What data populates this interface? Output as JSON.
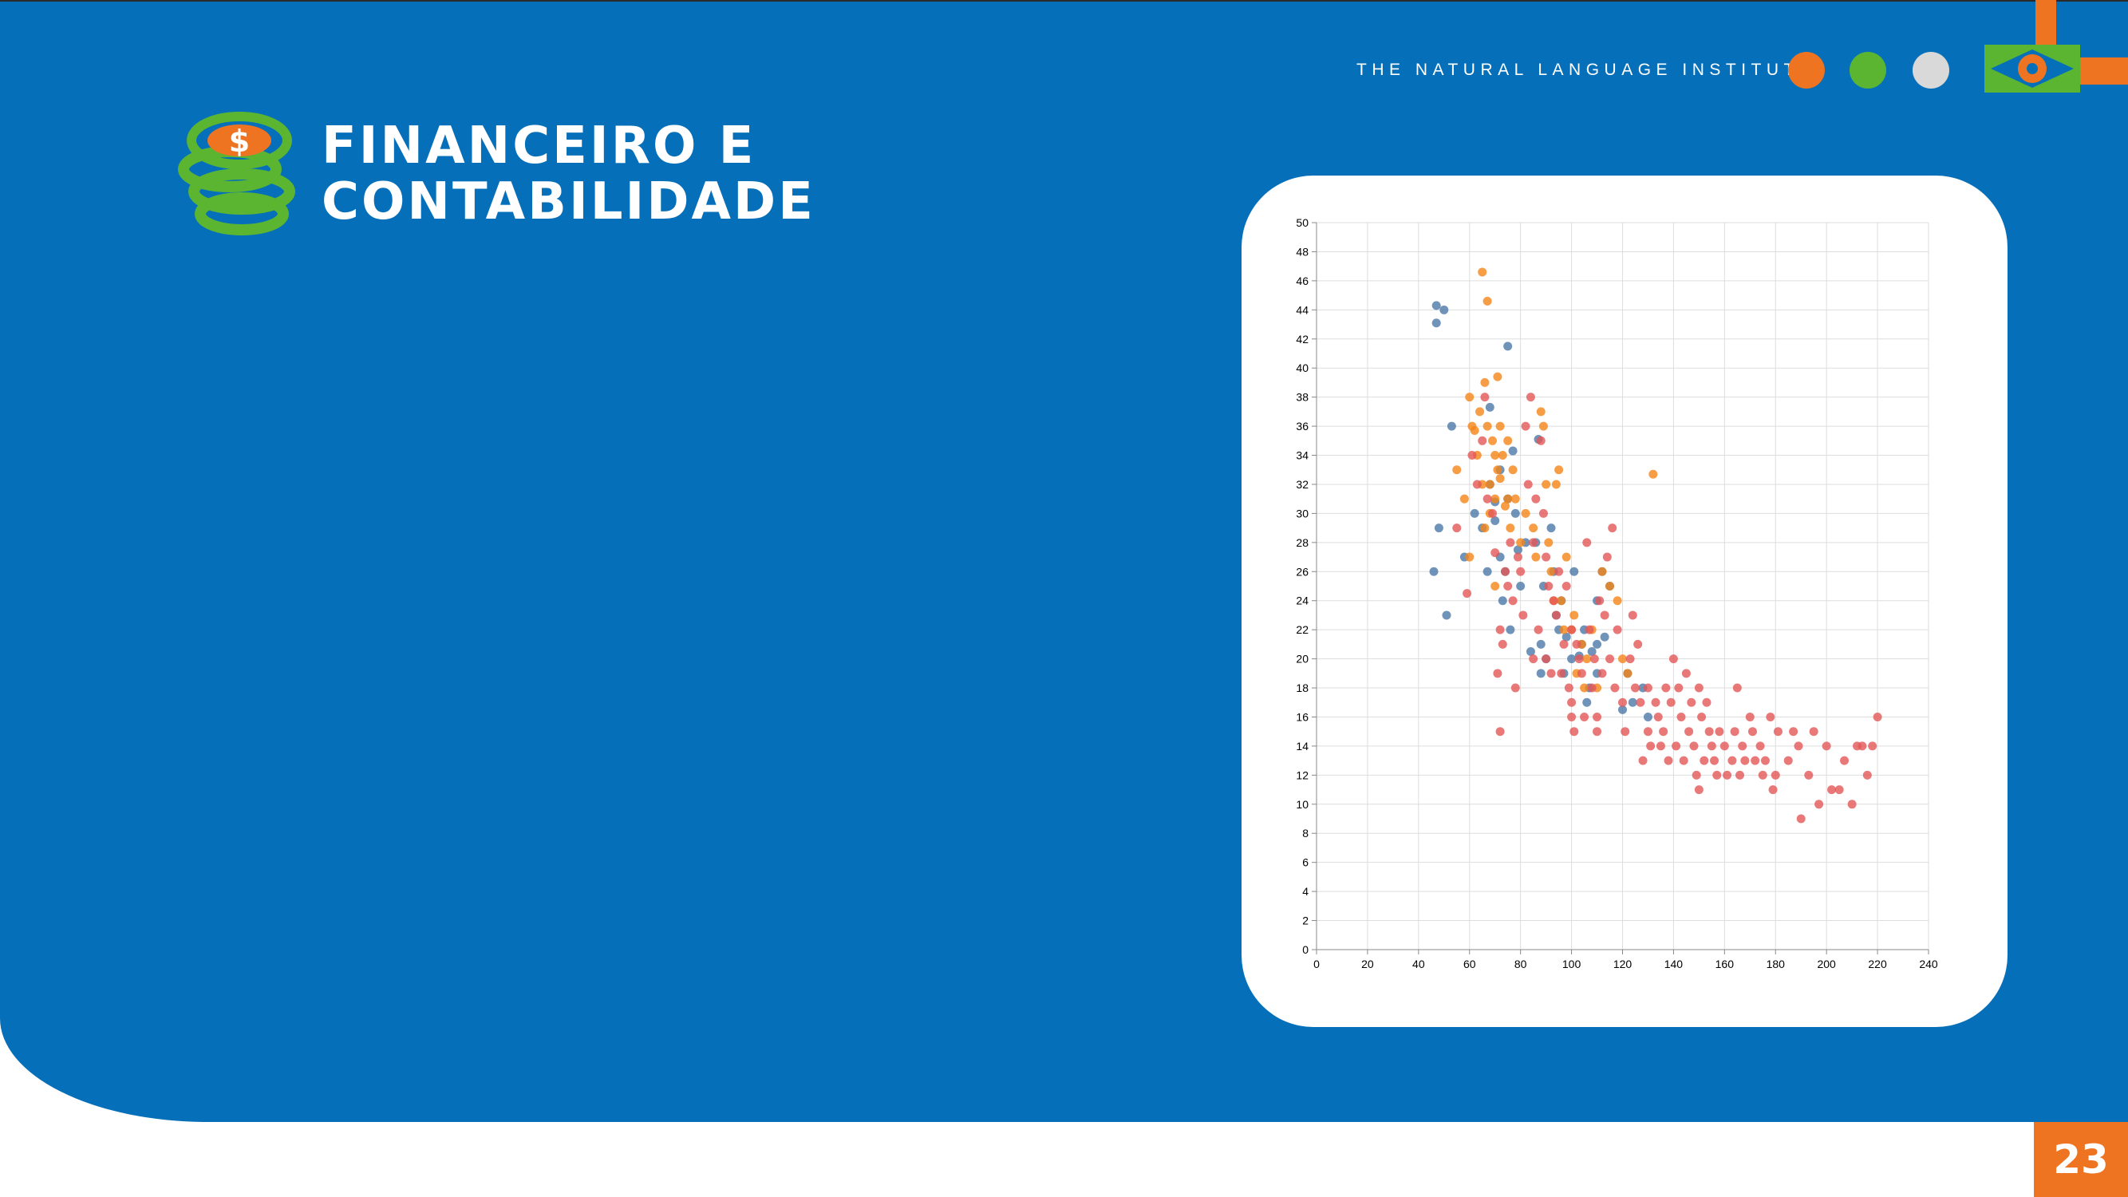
{
  "header": {
    "institute": "THE NATURAL LANGUAGE INSTITUTE",
    "dots": [
      {
        "name": "orange-dot",
        "color": "#ef7422"
      },
      {
        "name": "green-dot",
        "color": "#5cb531"
      },
      {
        "name": "gray-dot",
        "color": "#d9d9d9"
      }
    ],
    "logo_icon": "eye-flag-icon"
  },
  "slide": {
    "title_line1": "FINANCEIRO E",
    "title_line2": "CONTABILIDADE",
    "title_icon": "coin-stack-dollar-icon",
    "page_number": "23"
  },
  "colors": {
    "background": "#0570b9",
    "accent_orange": "#ef7422",
    "accent_green": "#5cb531"
  },
  "chart_data": {
    "type": "scatter",
    "xlim": [
      0,
      240
    ],
    "ylim": [
      0,
      50
    ],
    "x_ticks": [
      "0",
      "20",
      "40",
      "60",
      "80",
      "100",
      "120",
      "140",
      "160",
      "180",
      "200",
      "220",
      "240"
    ],
    "y_ticks": [
      "0",
      "2",
      "4",
      "6",
      "8",
      "10",
      "12",
      "14",
      "16",
      "18",
      "20",
      "22",
      "24",
      "26",
      "28",
      "30",
      "32",
      "34",
      "36",
      "38",
      "40",
      "42",
      "44",
      "46",
      "48",
      "50"
    ],
    "grid": true,
    "series": [
      {
        "color": "#4c78a8",
        "points": [
          [
            46,
            26
          ],
          [
            47,
            44.3
          ],
          [
            47,
            43.1
          ],
          [
            50,
            44
          ],
          [
            48,
            29
          ],
          [
            51,
            23
          ],
          [
            53,
            36
          ],
          [
            58,
            27
          ],
          [
            62,
            30
          ],
          [
            65,
            29
          ],
          [
            67,
            26
          ],
          [
            68,
            37.3
          ],
          [
            68,
            32
          ],
          [
            70,
            29.5
          ],
          [
            70,
            30.8
          ],
          [
            72,
            33
          ],
          [
            72,
            27
          ],
          [
            73,
            24
          ],
          [
            74,
            26
          ],
          [
            75,
            41.5
          ],
          [
            75,
            31
          ],
          [
            76,
            22
          ],
          [
            77,
            34.3
          ],
          [
            78,
            30
          ],
          [
            79,
            27.5
          ],
          [
            80,
            25
          ],
          [
            82,
            28
          ],
          [
            84,
            20.5
          ],
          [
            86,
            28
          ],
          [
            87,
            35.1
          ],
          [
            88,
            21
          ],
          [
            88,
            19
          ],
          [
            89,
            25
          ],
          [
            90,
            20
          ],
          [
            92,
            29
          ],
          [
            93,
            26
          ],
          [
            94,
            23
          ],
          [
            95,
            22
          ],
          [
            96,
            24
          ],
          [
            97,
            19
          ],
          [
            98,
            21.5
          ],
          [
            100,
            20
          ],
          [
            101,
            26
          ],
          [
            103,
            20.2
          ],
          [
            104,
            21
          ],
          [
            105,
            22
          ],
          [
            106,
            17
          ],
          [
            107,
            18
          ],
          [
            108,
            20.5
          ],
          [
            110,
            21
          ],
          [
            110,
            24
          ],
          [
            112,
            26
          ],
          [
            113,
            21.5
          ],
          [
            115,
            25
          ],
          [
            120,
            16.5
          ],
          [
            122,
            19
          ],
          [
            124,
            17
          ],
          [
            128,
            18
          ],
          [
            130,
            16
          ],
          [
            110,
            19
          ]
        ]
      },
      {
        "color": "#f58518",
        "points": [
          [
            55,
            33
          ],
          [
            58,
            31
          ],
          [
            60,
            38
          ],
          [
            61,
            36
          ],
          [
            62,
            35.7
          ],
          [
            63,
            34
          ],
          [
            64,
            37
          ],
          [
            65,
            46.6
          ],
          [
            65,
            32
          ],
          [
            66,
            29
          ],
          [
            66,
            39
          ],
          [
            67,
            44.6
          ],
          [
            67,
            36
          ],
          [
            68,
            32
          ],
          [
            68,
            30
          ],
          [
            69,
            35
          ],
          [
            70,
            31
          ],
          [
            70,
            34
          ],
          [
            71,
            33
          ],
          [
            71,
            39.4
          ],
          [
            72,
            36
          ],
          [
            72,
            32.4
          ],
          [
            73,
            34
          ],
          [
            74,
            30.5
          ],
          [
            75,
            35
          ],
          [
            75,
            31
          ],
          [
            76,
            29
          ],
          [
            77,
            33
          ],
          [
            78,
            31
          ],
          [
            80,
            28
          ],
          [
            82,
            30
          ],
          [
            85,
            29
          ],
          [
            86,
            27
          ],
          [
            88,
            37
          ],
          [
            89,
            36
          ],
          [
            90,
            32
          ],
          [
            91,
            28
          ],
          [
            92,
            26
          ],
          [
            93,
            24
          ],
          [
            94,
            32
          ],
          [
            95,
            33
          ],
          [
            96,
            24
          ],
          [
            97,
            22
          ],
          [
            98,
            27
          ],
          [
            100,
            22
          ],
          [
            101,
            23
          ],
          [
            102,
            19
          ],
          [
            104,
            21
          ],
          [
            105,
            18
          ],
          [
            106,
            20
          ],
          [
            108,
            22
          ],
          [
            110,
            18
          ],
          [
            112,
            26
          ],
          [
            115,
            25
          ],
          [
            118,
            24
          ],
          [
            120,
            20
          ],
          [
            122,
            19
          ],
          [
            132,
            32.7
          ],
          [
            60,
            27
          ],
          [
            70,
            25
          ]
        ]
      },
      {
        "color": "#e45756",
        "points": [
          [
            55,
            29
          ],
          [
            59,
            24.5
          ],
          [
            61,
            34
          ],
          [
            63,
            32
          ],
          [
            65,
            35
          ],
          [
            66,
            38
          ],
          [
            67,
            31
          ],
          [
            69,
            30
          ],
          [
            70,
            27.3
          ],
          [
            71,
            19
          ],
          [
            72,
            22
          ],
          [
            72,
            15
          ],
          [
            73,
            21
          ],
          [
            74,
            26
          ],
          [
            75,
            25
          ],
          [
            76,
            28
          ],
          [
            77,
            24
          ],
          [
            78,
            18
          ],
          [
            79,
            27
          ],
          [
            80,
            26
          ],
          [
            81,
            23
          ],
          [
            82,
            36
          ],
          [
            83,
            32
          ],
          [
            84,
            38
          ],
          [
            85,
            28
          ],
          [
            85,
            20
          ],
          [
            86,
            31
          ],
          [
            87,
            22
          ],
          [
            88,
            35
          ],
          [
            89,
            30
          ],
          [
            90,
            27
          ],
          [
            90,
            20
          ],
          [
            91,
            25
          ],
          [
            92,
            19
          ],
          [
            93,
            24
          ],
          [
            94,
            23
          ],
          [
            95,
            26
          ],
          [
            96,
            19
          ],
          [
            97,
            21
          ],
          [
            98,
            25
          ],
          [
            99,
            18
          ],
          [
            100,
            22
          ],
          [
            100,
            17
          ],
          [
            100,
            16
          ],
          [
            101,
            15
          ],
          [
            102,
            21
          ],
          [
            103,
            20
          ],
          [
            104,
            19
          ],
          [
            105,
            16
          ],
          [
            106,
            28
          ],
          [
            107,
            22
          ],
          [
            108,
            18
          ],
          [
            109,
            20
          ],
          [
            110,
            16
          ],
          [
            110,
            15
          ],
          [
            111,
            24
          ],
          [
            112,
            19
          ],
          [
            113,
            23
          ],
          [
            114,
            27
          ],
          [
            115,
            20
          ],
          [
            116,
            29
          ],
          [
            117,
            18
          ],
          [
            118,
            22
          ],
          [
            120,
            17
          ],
          [
            121,
            15
          ],
          [
            123,
            20
          ],
          [
            124,
            23
          ],
          [
            125,
            18
          ],
          [
            126,
            21
          ],
          [
            127,
            17
          ],
          [
            128,
            13
          ],
          [
            130,
            15
          ],
          [
            130,
            18
          ],
          [
            131,
            14
          ],
          [
            133,
            17
          ],
          [
            134,
            16
          ],
          [
            135,
            14
          ],
          [
            136,
            15
          ],
          [
            137,
            18
          ],
          [
            138,
            13
          ],
          [
            139,
            17
          ],
          [
            140,
            20
          ],
          [
            141,
            14
          ],
          [
            142,
            18
          ],
          [
            143,
            16
          ],
          [
            144,
            13
          ],
          [
            145,
            19
          ],
          [
            146,
            15
          ],
          [
            147,
            17
          ],
          [
            148,
            14
          ],
          [
            149,
            12
          ],
          [
            150,
            18
          ],
          [
            150,
            11
          ],
          [
            151,
            16
          ],
          [
            152,
            13
          ],
          [
            153,
            17
          ],
          [
            154,
            15
          ],
          [
            155,
            14
          ],
          [
            156,
            13
          ],
          [
            157,
            12
          ],
          [
            158,
            15
          ],
          [
            160,
            14
          ],
          [
            161,
            12
          ],
          [
            163,
            13
          ],
          [
            164,
            15
          ],
          [
            165,
            18
          ],
          [
            166,
            12
          ],
          [
            167,
            14
          ],
          [
            168,
            13
          ],
          [
            170,
            16
          ],
          [
            171,
            15
          ],
          [
            172,
            13
          ],
          [
            174,
            14
          ],
          [
            175,
            12
          ],
          [
            176,
            13
          ],
          [
            178,
            16
          ],
          [
            179,
            11
          ],
          [
            180,
            12
          ],
          [
            181,
            15
          ],
          [
            185,
            13
          ],
          [
            187,
            15
          ],
          [
            189,
            14
          ],
          [
            190,
            9
          ],
          [
            193,
            12
          ],
          [
            195,
            15
          ],
          [
            197,
            10
          ],
          [
            200,
            14
          ],
          [
            202,
            11
          ],
          [
            205,
            11
          ],
          [
            207,
            13
          ],
          [
            210,
            10
          ],
          [
            212,
            14
          ],
          [
            214,
            14
          ],
          [
            216,
            12
          ],
          [
            218,
            14
          ],
          [
            220,
            16
          ]
        ]
      }
    ]
  }
}
